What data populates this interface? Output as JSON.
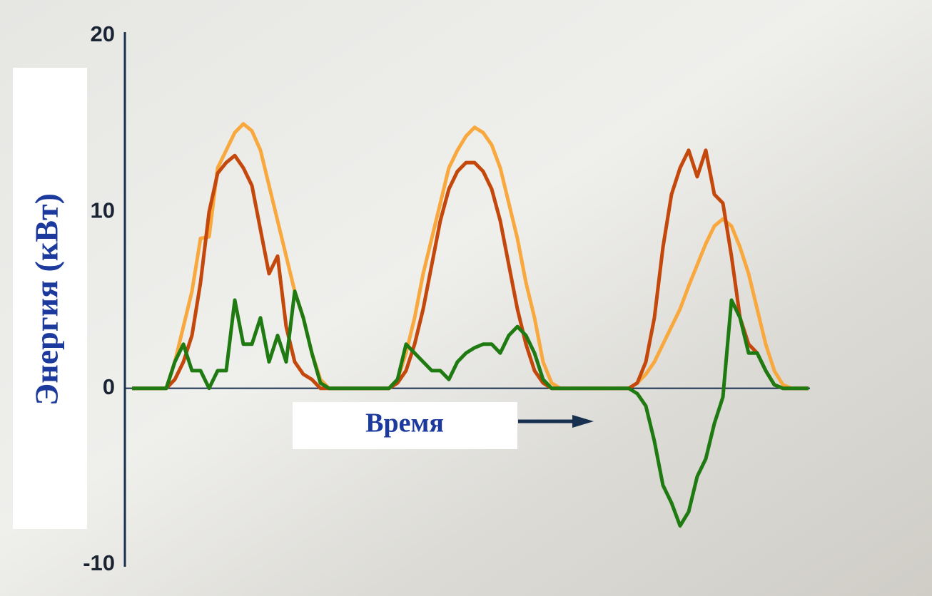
{
  "chart_data": {
    "type": "line",
    "ylabel": "Энергия (кВт)",
    "xlabel": "Время",
    "ylim": [
      -10,
      20
    ],
    "yticks": [
      -10,
      0,
      10,
      20
    ],
    "series": [
      {
        "color": "#f9a83e",
        "values": [
          0,
          0,
          0,
          0,
          0,
          1.5,
          3.5,
          5.5,
          8.5,
          8.6,
          12.5,
          13.5,
          14.5,
          15,
          14.6,
          13.5,
          11.5,
          9.5,
          7.5,
          5.5,
          4,
          2,
          0.5,
          0,
          0,
          0,
          0,
          0,
          0,
          0,
          0,
          0.5,
          2,
          4,
          6.5,
          8.5,
          10.5,
          12.5,
          13.5,
          14.3,
          14.8,
          14.5,
          13.8,
          12.5,
          10.5,
          8.5,
          6,
          4,
          1.5,
          0.3,
          0,
          0,
          0,
          0,
          0,
          0,
          0,
          0,
          0,
          0.3,
          0.8,
          1.5,
          2.5,
          3.5,
          4.5,
          5.8,
          7,
          8.2,
          9.2,
          9.6,
          9.2,
          8,
          6.5,
          4.5,
          2.5,
          1,
          0.2,
          0,
          0,
          0
        ]
      },
      {
        "color": "#c4470c",
        "values": [
          0,
          0,
          0,
          0,
          0,
          0.5,
          1.5,
          3,
          6,
          10,
          12.2,
          12.8,
          13.2,
          12.5,
          11.5,
          9,
          6.5,
          7.5,
          3.5,
          1.5,
          0.8,
          0.5,
          0,
          0,
          0,
          0,
          0,
          0,
          0,
          0,
          0,
          0.3,
          1,
          2.5,
          4.5,
          7,
          9.5,
          11.3,
          12.3,
          12.8,
          12.8,
          12.3,
          11.3,
          9.5,
          7,
          4.5,
          2.5,
          1,
          0.3,
          0,
          0,
          0,
          0,
          0,
          0,
          0,
          0,
          0,
          0,
          0.3,
          1.5,
          4,
          8,
          11,
          12.5,
          13.5,
          12,
          13.5,
          11,
          10.5,
          7.5,
          4,
          2.5,
          2,
          1,
          0.2,
          0,
          0,
          0,
          0
        ]
      },
      {
        "color": "#1f7a12",
        "values": [
          0,
          0,
          0,
          0,
          0,
          1.5,
          2.5,
          1,
          1,
          0,
          1,
          1,
          5,
          2.5,
          2.5,
          4,
          1.5,
          3,
          1.5,
          5.5,
          4,
          2,
          0.3,
          0,
          0,
          0,
          0,
          0,
          0,
          0,
          0,
          0.5,
          2.5,
          2,
          1.5,
          1,
          1,
          0.5,
          1.5,
          2,
          2.3,
          2.5,
          2.5,
          2,
          3,
          3.5,
          3,
          2,
          0.5,
          0,
          0,
          0,
          0,
          0,
          0,
          0,
          0,
          0,
          0,
          -0.3,
          -1,
          -3,
          -5.5,
          -6.5,
          -7.8,
          -7,
          -5,
          -4,
          -2,
          -0.5,
          5,
          4,
          2,
          2,
          1,
          0.2,
          0,
          0,
          0,
          0
        ]
      }
    ]
  }
}
